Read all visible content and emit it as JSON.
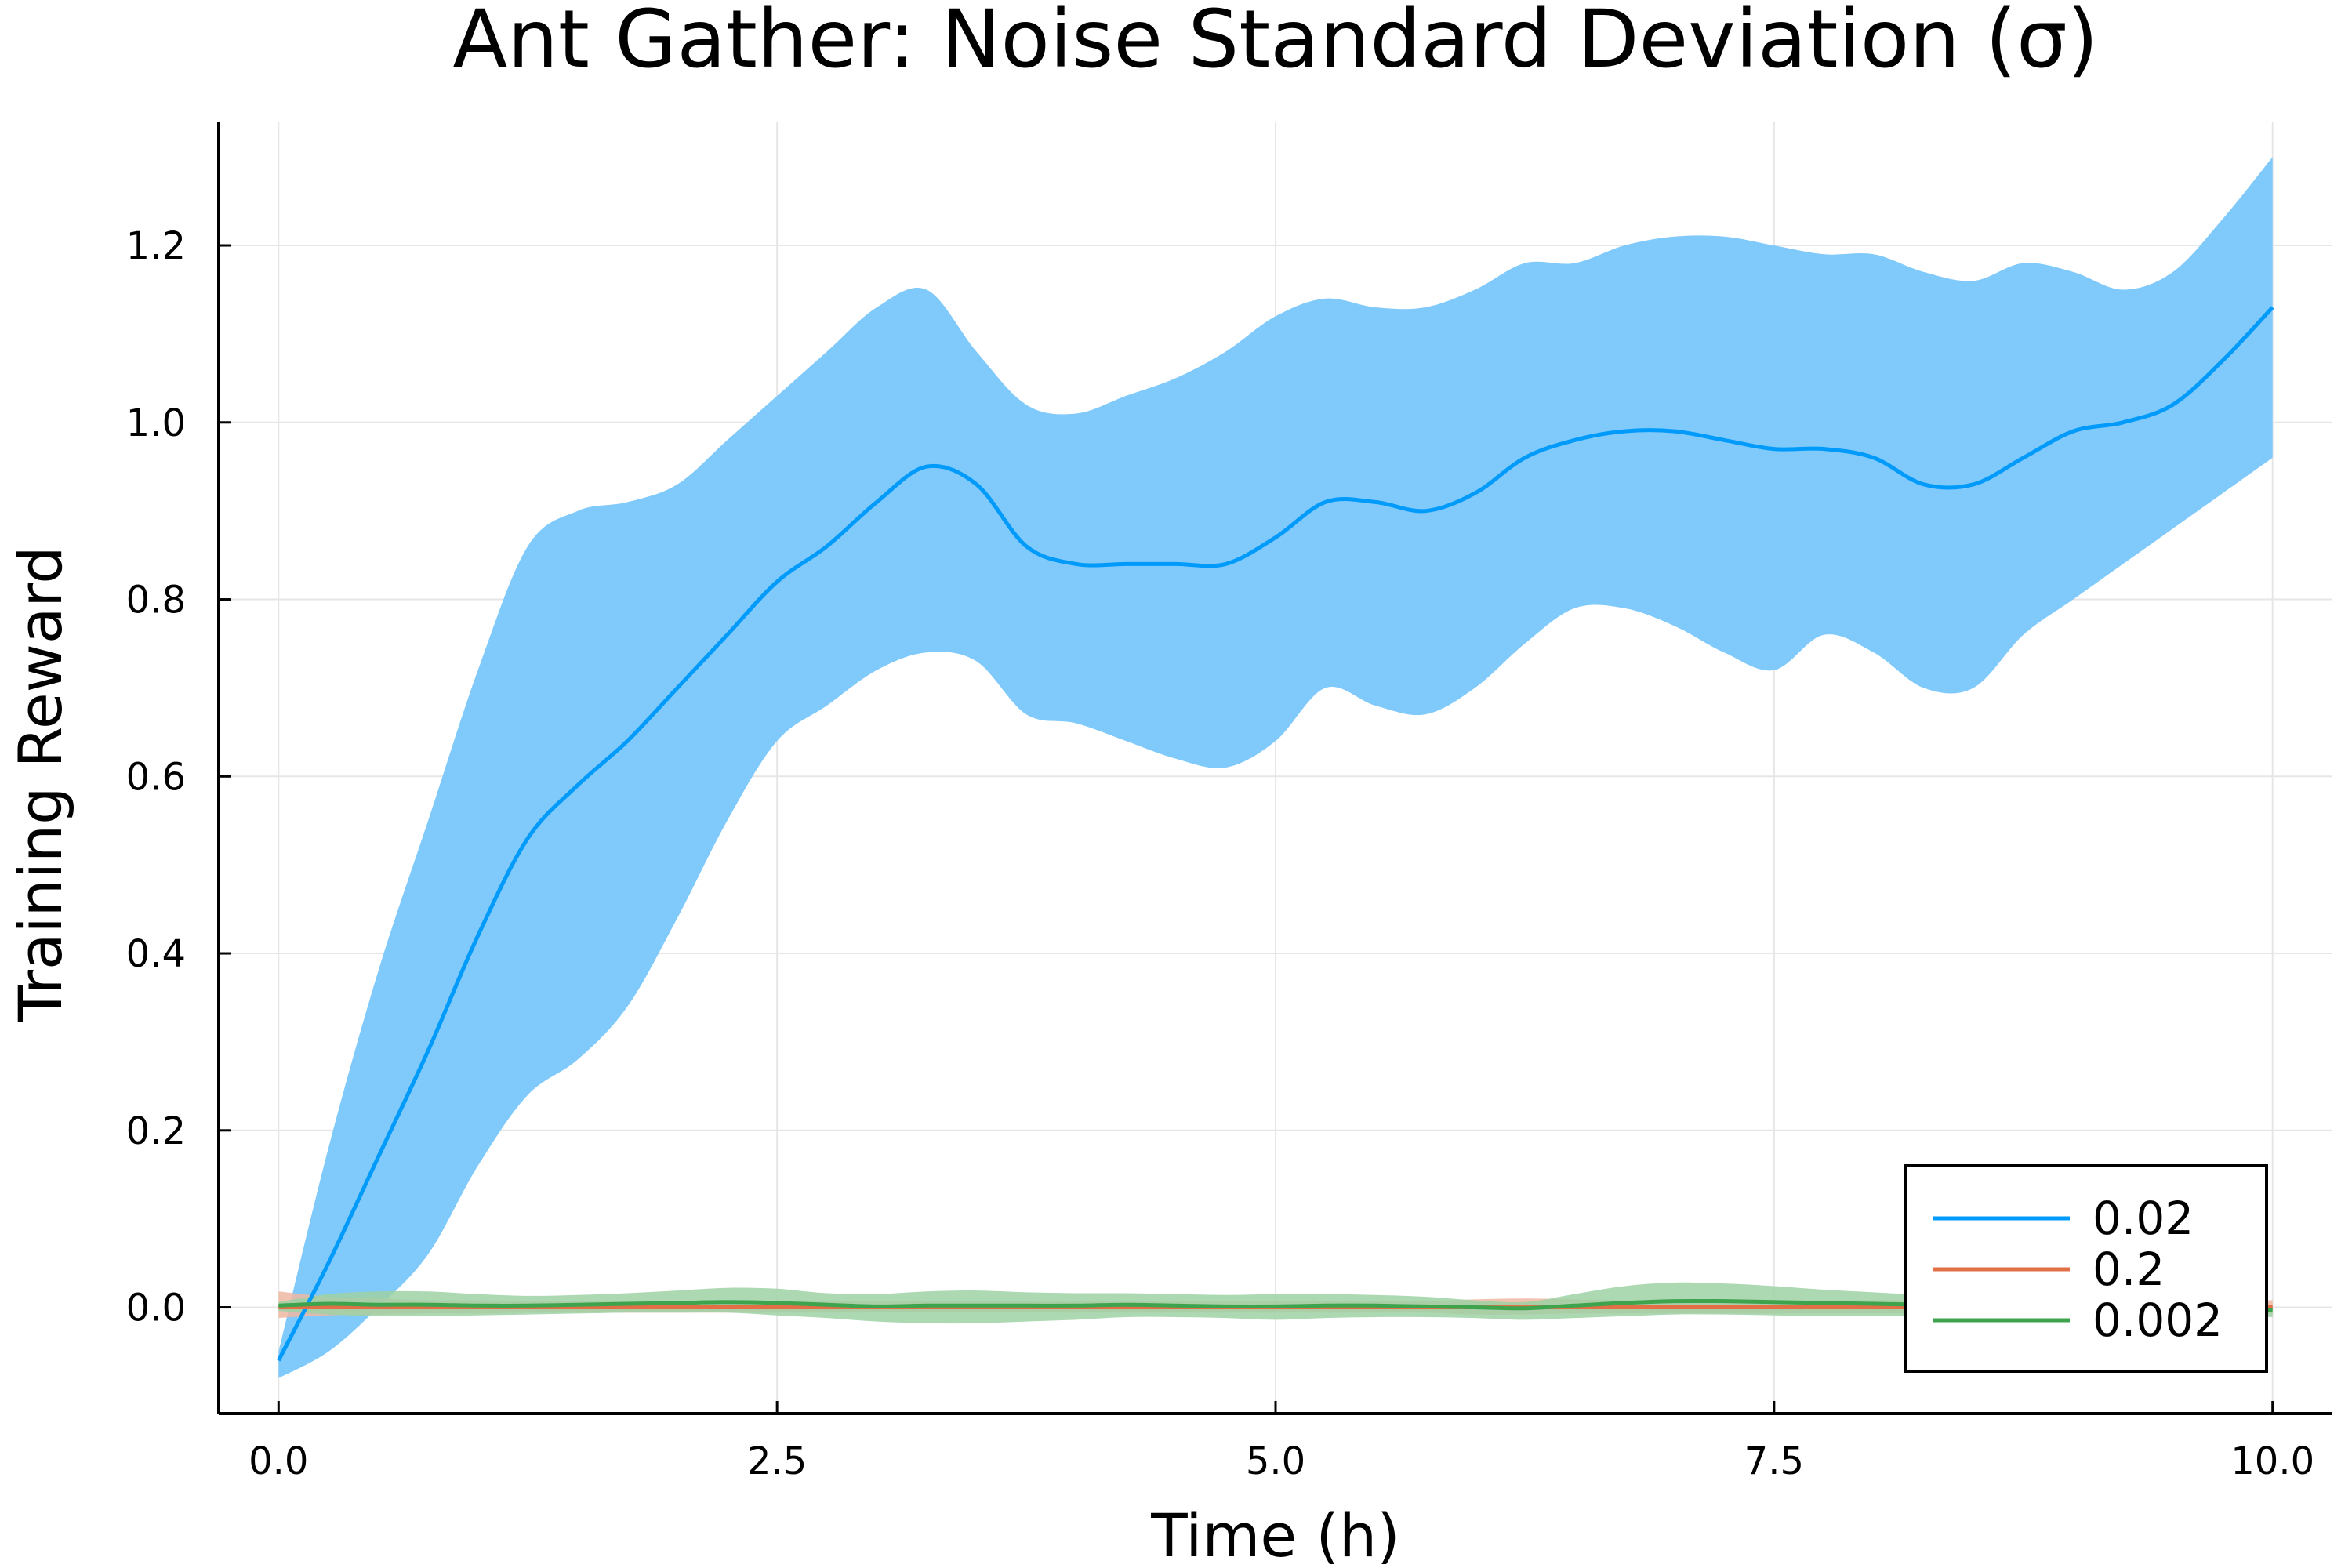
{
  "chart_data": {
    "type": "line",
    "title": "Ant Gather: Noise Standard Deviation (σ)",
    "xlabel": "Time (h)",
    "ylabel": "Training Reward",
    "xlim": [
      -0.3,
      10.3
    ],
    "ylim": [
      -0.12,
      1.34
    ],
    "xticks": [
      0.0,
      2.5,
      5.0,
      7.5,
      10.0
    ],
    "xtick_labels": [
      "0.0",
      "2.5",
      "5.0",
      "7.5",
      "10.0"
    ],
    "yticks": [
      0.0,
      0.2,
      0.4,
      0.6,
      0.8,
      1.0,
      1.2
    ],
    "ytick_labels": [
      "0.0",
      "0.2",
      "0.4",
      "0.6",
      "0.8",
      "1.0",
      "1.2"
    ],
    "grid": true,
    "legend_position": "bottom-right",
    "x": [
      0.0,
      0.25,
      0.5,
      0.75,
      1.0,
      1.25,
      1.5,
      1.75,
      2.0,
      2.25,
      2.5,
      2.75,
      3.0,
      3.25,
      3.5,
      3.75,
      4.0,
      4.25,
      4.5,
      4.75,
      5.0,
      5.25,
      5.5,
      5.75,
      6.0,
      6.25,
      6.5,
      6.75,
      7.0,
      7.25,
      7.5,
      7.75,
      8.0,
      8.25,
      8.5,
      8.75,
      9.0,
      9.25,
      9.5,
      9.75,
      10.0
    ],
    "series": [
      {
        "name": "0.02",
        "color": "#009AFA",
        "band_color": "#7FC9FB",
        "values": [
          -0.06,
          0.05,
          0.17,
          0.29,
          0.42,
          0.53,
          0.59,
          0.64,
          0.7,
          0.76,
          0.82,
          0.86,
          0.91,
          0.95,
          0.93,
          0.86,
          0.84,
          0.84,
          0.84,
          0.84,
          0.87,
          0.91,
          0.91,
          0.9,
          0.92,
          0.96,
          0.98,
          0.99,
          0.99,
          0.98,
          0.97,
          0.97,
          0.96,
          0.93,
          0.93,
          0.96,
          0.99,
          1.0,
          1.02,
          1.07,
          1.13
        ],
        "upper": [
          -0.05,
          0.18,
          0.38,
          0.55,
          0.72,
          0.86,
          0.9,
          0.91,
          0.93,
          0.98,
          1.03,
          1.08,
          1.13,
          1.15,
          1.08,
          1.02,
          1.01,
          1.03,
          1.05,
          1.08,
          1.12,
          1.14,
          1.13,
          1.13,
          1.15,
          1.18,
          1.18,
          1.2,
          1.21,
          1.21,
          1.2,
          1.19,
          1.19,
          1.17,
          1.16,
          1.18,
          1.17,
          1.15,
          1.17,
          1.23,
          1.3
        ],
        "lower": [
          -0.08,
          -0.05,
          0.0,
          0.06,
          0.16,
          0.24,
          0.28,
          0.34,
          0.44,
          0.55,
          0.64,
          0.68,
          0.72,
          0.74,
          0.73,
          0.67,
          0.66,
          0.64,
          0.62,
          0.61,
          0.64,
          0.7,
          0.68,
          0.67,
          0.7,
          0.75,
          0.79,
          0.79,
          0.77,
          0.74,
          0.72,
          0.76,
          0.74,
          0.7,
          0.7,
          0.76,
          0.8,
          0.84,
          0.88,
          0.92,
          0.96
        ]
      },
      {
        "name": "0.2",
        "color": "#E26F46",
        "band_color": "#F0B7A2",
        "values": [
          0.0,
          0.0,
          0.0,
          0.0,
          0.0,
          0.0,
          0.0,
          0.0,
          0.0,
          0.0,
          0.0,
          0.0,
          0.0,
          0.0,
          0.0,
          0.0,
          0.0,
          0.0,
          0.0,
          0.0,
          0.0,
          0.0,
          0.0,
          0.0,
          0.0,
          0.0,
          0.0,
          0.0,
          0.0,
          0.0,
          0.0,
          0.0,
          0.0,
          0.0,
          0.0,
          0.0,
          0.0,
          0.0,
          0.0,
          0.0,
          0.0
        ],
        "upper": [
          0.018,
          0.012,
          0.01,
          0.008,
          0.008,
          0.007,
          0.007,
          0.007,
          0.007,
          0.007,
          0.007,
          0.007,
          0.007,
          0.007,
          0.007,
          0.007,
          0.007,
          0.007,
          0.007,
          0.007,
          0.007,
          0.007,
          0.007,
          0.007,
          0.009,
          0.01,
          0.009,
          0.008,
          0.008,
          0.008,
          0.008,
          0.008,
          0.008,
          0.008,
          0.008,
          0.008,
          0.008,
          0.008,
          0.008,
          0.008,
          0.008
        ],
        "lower": [
          -0.012,
          -0.009,
          -0.008,
          -0.007,
          -0.007,
          -0.006,
          -0.006,
          -0.006,
          -0.006,
          -0.006,
          -0.006,
          -0.006,
          -0.006,
          -0.006,
          -0.006,
          -0.006,
          -0.006,
          -0.006,
          -0.006,
          -0.006,
          -0.006,
          -0.006,
          -0.006,
          -0.006,
          -0.008,
          -0.008,
          -0.007,
          -0.007,
          -0.007,
          -0.007,
          -0.007,
          -0.007,
          -0.007,
          -0.007,
          -0.007,
          -0.007,
          -0.007,
          -0.007,
          -0.007,
          -0.007,
          -0.007
        ]
      },
      {
        "name": "0.002",
        "color": "#3DA44D",
        "band_color": "#9DD1A5",
        "values": [
          0.002,
          0.004,
          0.003,
          0.003,
          0.002,
          0.002,
          0.003,
          0.004,
          0.005,
          0.006,
          0.005,
          0.003,
          0.001,
          0.002,
          0.002,
          0.002,
          0.002,
          0.003,
          0.002,
          0.001,
          0.001,
          0.002,
          0.002,
          0.001,
          0.0,
          -0.001,
          0.002,
          0.005,
          0.007,
          0.007,
          0.006,
          0.005,
          0.004,
          0.003,
          0.002,
          0.001,
          0.0,
          -0.001,
          -0.002,
          -0.002,
          -0.003
        ],
        "upper": [
          0.006,
          0.015,
          0.018,
          0.018,
          0.015,
          0.013,
          0.014,
          0.016,
          0.019,
          0.022,
          0.021,
          0.016,
          0.015,
          0.018,
          0.019,
          0.017,
          0.016,
          0.016,
          0.015,
          0.014,
          0.015,
          0.015,
          0.014,
          0.012,
          0.008,
          0.006,
          0.015,
          0.024,
          0.028,
          0.027,
          0.024,
          0.02,
          0.017,
          0.014,
          0.012,
          0.01,
          0.008,
          0.006,
          0.004,
          0.002,
          0.001
        ],
        "lower": [
          -0.004,
          -0.008,
          -0.01,
          -0.01,
          -0.009,
          -0.008,
          -0.007,
          -0.006,
          -0.006,
          -0.006,
          -0.009,
          -0.012,
          -0.016,
          -0.018,
          -0.018,
          -0.016,
          -0.014,
          -0.011,
          -0.011,
          -0.012,
          -0.014,
          -0.012,
          -0.011,
          -0.011,
          -0.012,
          -0.014,
          -0.012,
          -0.01,
          -0.008,
          -0.008,
          -0.009,
          -0.01,
          -0.01,
          -0.009,
          -0.009,
          -0.009,
          -0.008,
          -0.009,
          -0.009,
          -0.01,
          -0.011
        ]
      }
    ]
  }
}
